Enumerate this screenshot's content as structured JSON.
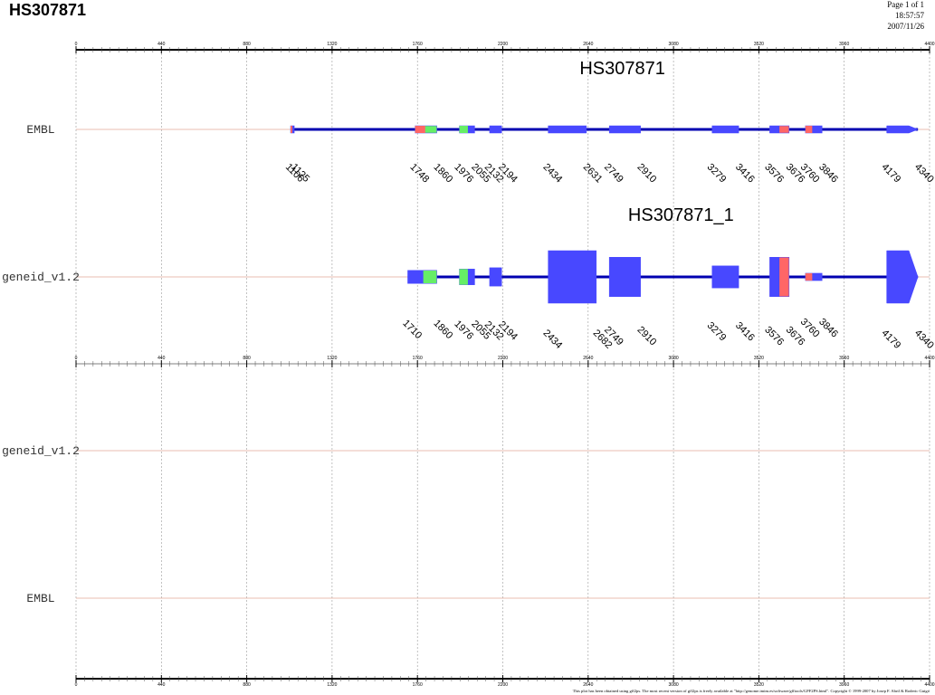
{
  "header": {
    "title": "HS307871",
    "page": "Page 1 of 1",
    "time": "18:57:57",
    "date": "2007/11/26"
  },
  "axis": {
    "xlim": [
      0,
      4400
    ],
    "ticks": [
      0,
      440,
      880,
      1320,
      1760,
      2200,
      2640,
      3080,
      3520,
      3960,
      4400
    ],
    "minor_per_major": 10
  },
  "colors": {
    "blue": "#4848ff",
    "intron": "#0000b0",
    "track_line": "#e0a898",
    "grid": "#999999"
  },
  "panels": [
    {
      "tracks": [
        {
          "label": "EMBL",
          "gene": {
            "name": "HS307871",
            "strand": "+",
            "exons": [
              {
                "start": 1106,
                "end": 1125,
                "color": "#4848ff",
                "part": {
                  "from": 1106,
                  "to": 1115,
                  "color": "#ff6666"
                }
              },
              {
                "start": 1748,
                "end": 1860,
                "color": "#66ee66",
                "part": {
                  "from": 1748,
                  "to": 1800,
                  "color": "#ff6666"
                }
              },
              {
                "start": 1976,
                "end": 2055,
                "color": "#4848ff",
                "part": {
                  "from": 1976,
                  "to": 2020,
                  "color": "#66ee66"
                }
              },
              {
                "start": 2132,
                "end": 2194,
                "color": "#4848ff"
              },
              {
                "start": 2434,
                "end": 2631,
                "color": "#4848ff"
              },
              {
                "start": 2749,
                "end": 2910,
                "color": "#4848ff"
              },
              {
                "start": 3279,
                "end": 3416,
                "color": "#4848ff"
              },
              {
                "start": 3576,
                "end": 3676,
                "color": "#ff6666",
                "part": {
                  "from": 3576,
                  "to": 3626,
                  "color": "#4848ff"
                }
              },
              {
                "start": 3760,
                "end": 3846,
                "color": "#4848ff",
                "part": {
                  "from": 3760,
                  "to": 3795,
                  "color": "#ff6666"
                }
              },
              {
                "start": 4179,
                "end": 4340,
                "color": "#4848ff"
              }
            ]
          }
        },
        {
          "label": "geneid_v1.2",
          "gene": {
            "name": "HS307871_1",
            "strand": "+",
            "exons": [
              {
                "start": 1710,
                "end": 1860,
                "score": 0.25,
                "color": "#66ee66",
                "part": {
                  "from": 1710,
                  "to": 1790,
                  "color": "#4848ff"
                }
              },
              {
                "start": 1976,
                "end": 2055,
                "score": 0.3,
                "color": "#4848ff",
                "part": {
                  "from": 1976,
                  "to": 2020,
                  "color": "#66ee66"
                }
              },
              {
                "start": 2132,
                "end": 2194,
                "score": 0.35,
                "color": "#4848ff"
              },
              {
                "start": 2434,
                "end": 2682,
                "score": 1.0,
                "color": "#4848ff"
              },
              {
                "start": 2749,
                "end": 2910,
                "score": 0.75,
                "color": "#4848ff"
              },
              {
                "start": 3279,
                "end": 3416,
                "score": 0.42,
                "color": "#4848ff"
              },
              {
                "start": 3576,
                "end": 3676,
                "score": 0.75,
                "color": "#ff6666",
                "part": {
                  "from": 3576,
                  "to": 3626,
                  "color": "#4848ff"
                }
              },
              {
                "start": 3760,
                "end": 3846,
                "score": 0.14,
                "color": "#4848ff",
                "part": {
                  "from": 3760,
                  "to": 3795,
                  "color": "#ff6666"
                }
              },
              {
                "start": 4179,
                "end": 4340,
                "score": 1.0,
                "color": "#4848ff"
              }
            ]
          }
        }
      ]
    },
    {
      "tracks": [
        {
          "label": "geneid_v1.2"
        },
        {
          "label": "EMBL"
        }
      ]
    }
  ],
  "footer": "This plot has been obtained using gff2ps. The most recent version of gff2ps is freely available at \"http://genome.imim.es/software/gfftools/GFF2PS.html\". Copyright © 1999-2007 by Josep F. Abril & Roderic Guigó"
}
